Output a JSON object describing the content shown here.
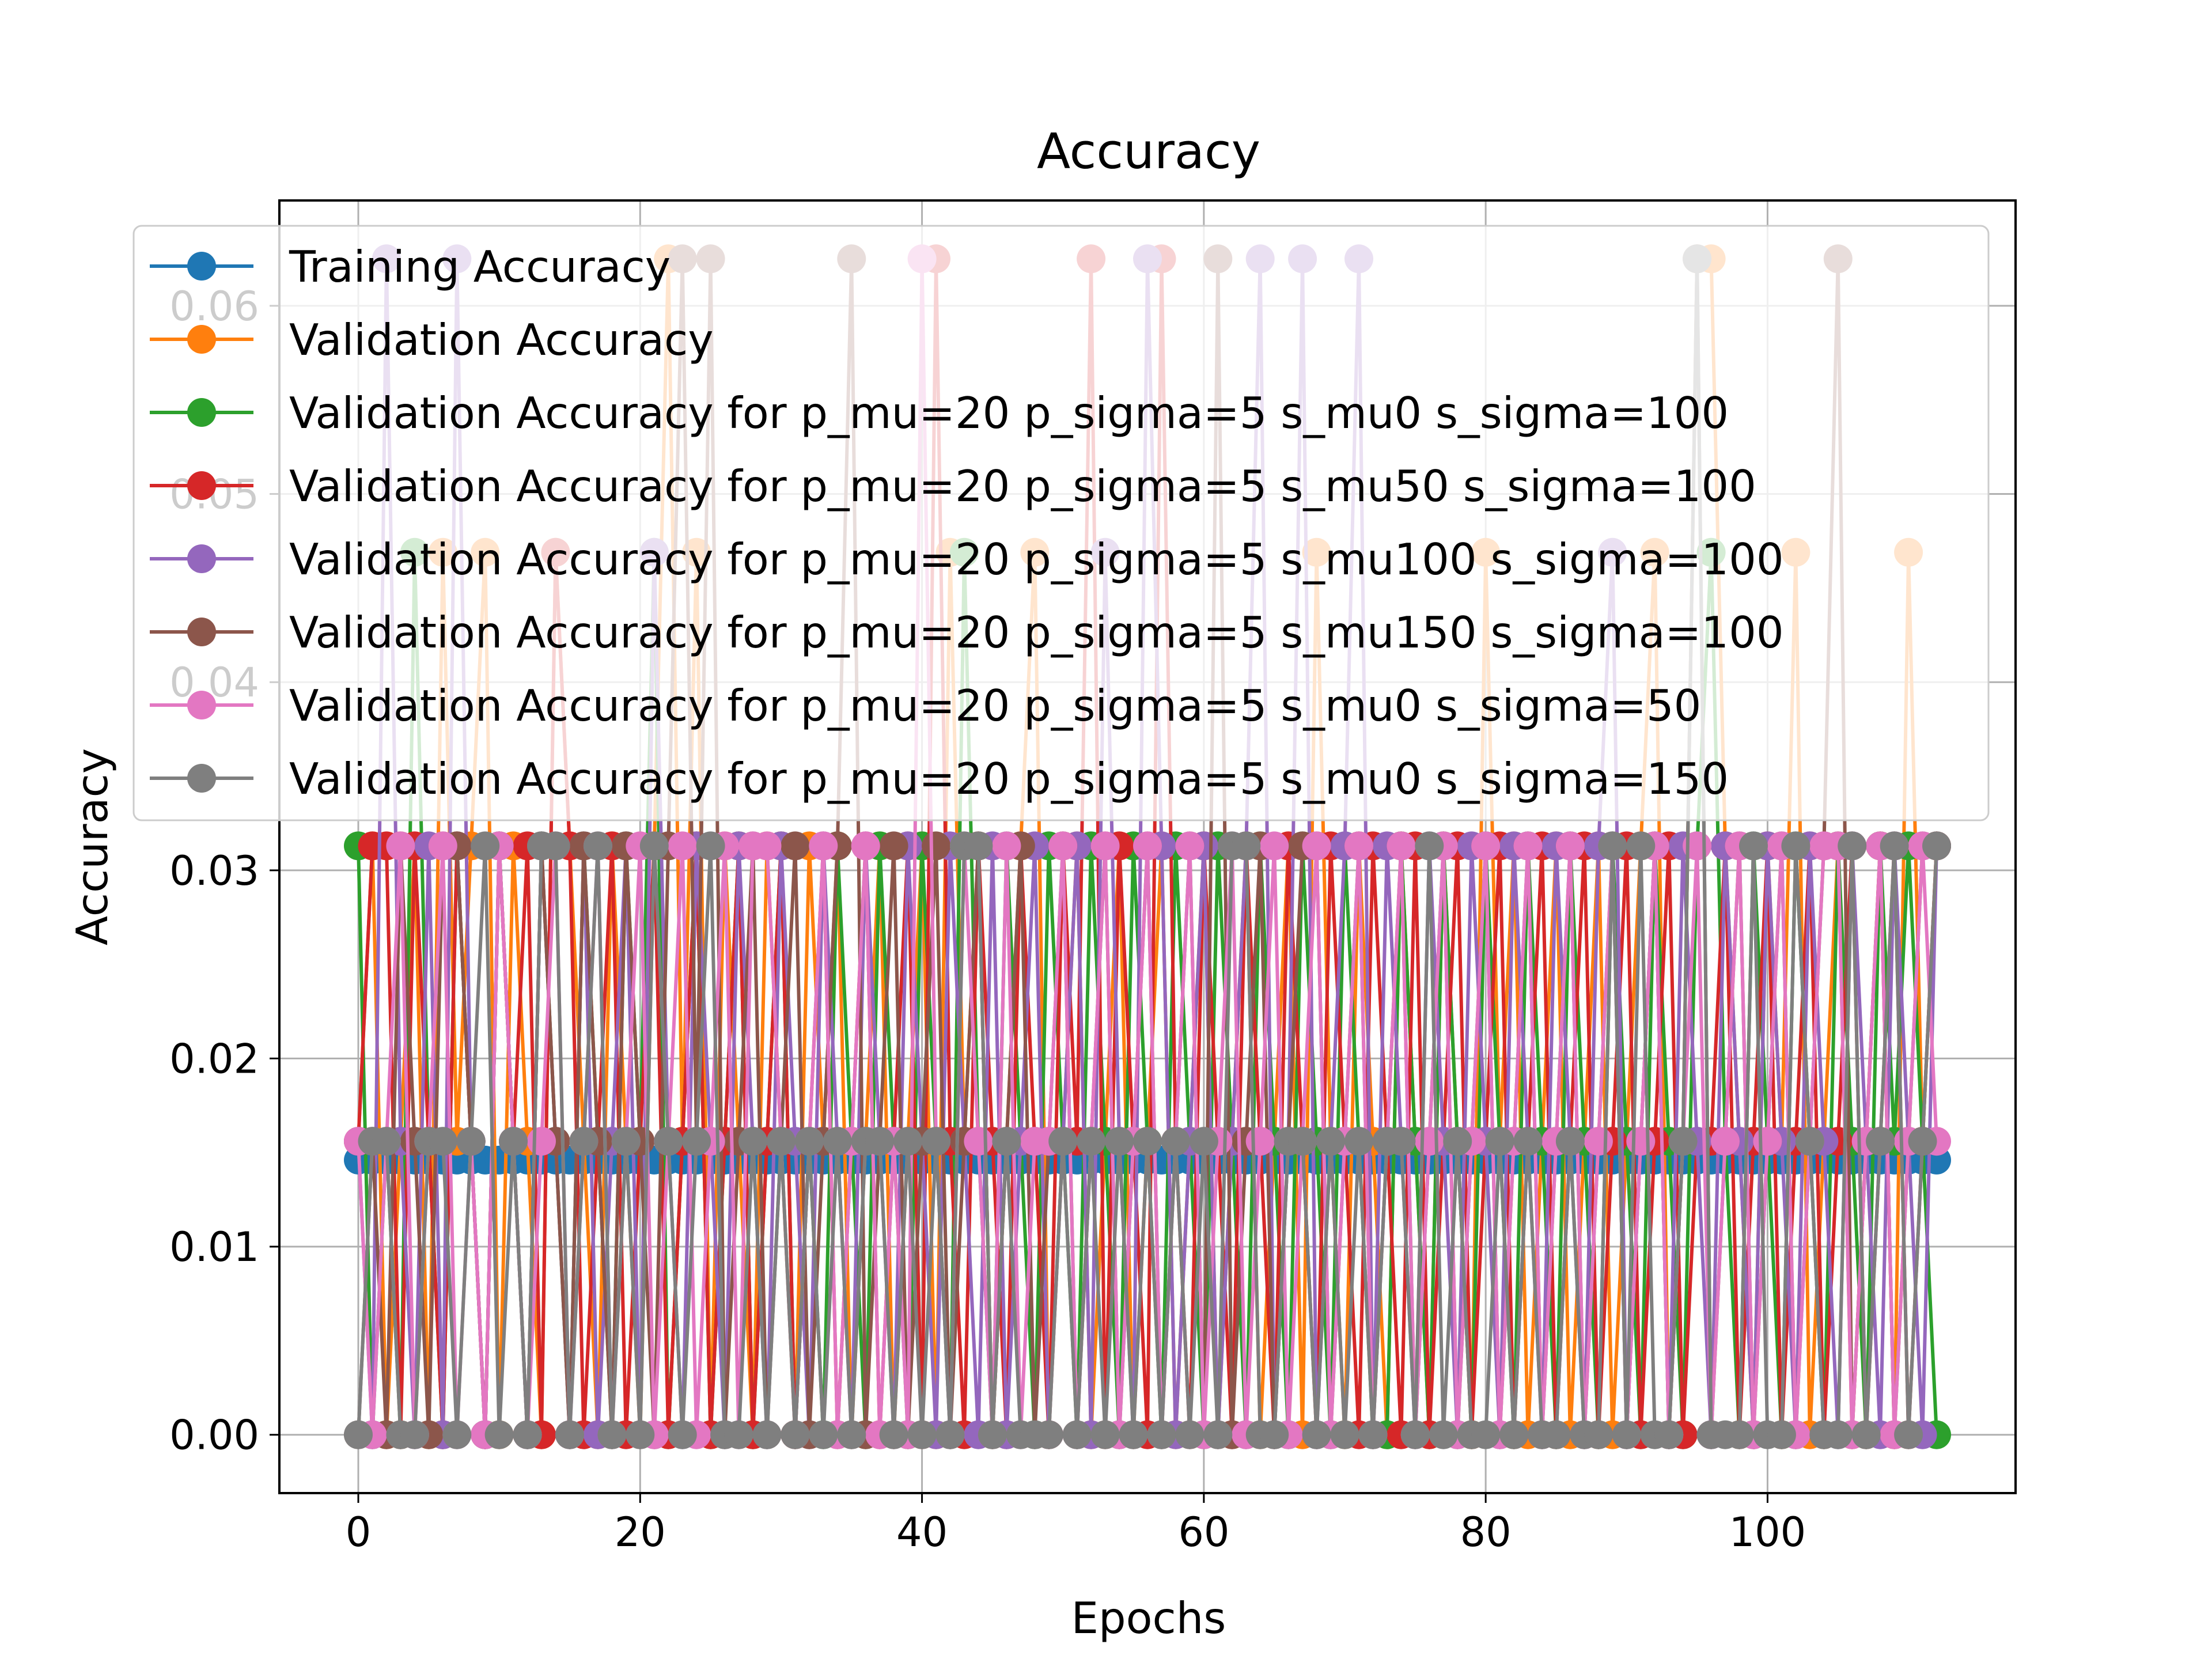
{
  "chart_data": {
    "type": "line",
    "title": "Accuracy",
    "xlabel": "Epochs",
    "ylabel": "Accuracy",
    "xlim": [
      -5.6,
      117.6
    ],
    "ylim": [
      -0.0031,
      0.0656
    ],
    "xticks": [
      0,
      20,
      40,
      60,
      80,
      100
    ],
    "xtick_labels": [
      "0",
      "20",
      "40",
      "60",
      "80",
      "100"
    ],
    "yticks": [
      0.0,
      0.01,
      0.02,
      0.03,
      0.04,
      0.05,
      0.06
    ],
    "ytick_labels": [
      "0.00",
      "0.01",
      "0.02",
      "0.03",
      "0.04",
      "0.05",
      "0.06"
    ],
    "grid": true,
    "legend_position": "upper-left",
    "x": [
      0,
      1,
      2,
      3,
      4,
      5,
      6,
      7,
      8,
      9,
      10,
      11,
      12,
      13,
      14,
      15,
      16,
      17,
      18,
      19,
      20,
      21,
      22,
      23,
      24,
      25,
      26,
      27,
      28,
      29,
      30,
      31,
      32,
      33,
      34,
      35,
      36,
      37,
      38,
      39,
      40,
      41,
      42,
      43,
      44,
      45,
      46,
      47,
      48,
      49,
      50,
      51,
      52,
      53,
      54,
      55,
      56,
      57,
      58,
      59,
      60,
      61,
      62,
      63,
      64,
      65,
      66,
      67,
      68,
      69,
      70,
      71,
      72,
      73,
      74,
      75,
      76,
      77,
      78,
      79,
      80,
      81,
      82,
      83,
      84,
      85,
      86,
      87,
      88,
      89,
      90,
      91,
      92,
      93,
      94,
      95,
      96,
      97,
      98,
      99,
      100,
      101,
      102,
      103,
      104,
      105,
      106,
      107,
      108,
      109,
      110,
      111,
      112
    ],
    "series": [
      {
        "name": "Training Accuracy",
        "color": "#1f77b4",
        "values": [
          0.0146,
          0.0146,
          0.0146,
          0.0146,
          0.0146,
          0.0146,
          0.0146,
          0.0146,
          0.0146,
          0.0146,
          0.0146,
          0.0146,
          0.0146,
          0.0146,
          0.0146,
          0.0146,
          0.0146,
          0.0146,
          0.0146,
          0.0146,
          0.0146,
          0.0146,
          0.0146,
          0.0146,
          0.0146,
          0.0146,
          0.0146,
          0.0146,
          0.0146,
          0.0146,
          0.0146,
          0.0146,
          0.0146,
          0.0146,
          0.0146,
          0.0146,
          0.0146,
          0.0146,
          0.0146,
          0.0146,
          0.0146,
          0.0146,
          0.0146,
          0.0146,
          0.0146,
          0.0146,
          0.0146,
          0.0146,
          0.0146,
          0.0146,
          0.0146,
          0.0146,
          0.0146,
          0.0146,
          0.0146,
          0.0146,
          0.0146,
          0.0146,
          0.0146,
          0.0146,
          0.0146,
          0.0146,
          0.0146,
          0.0146,
          0.0146,
          0.0146,
          0.0146,
          0.0146,
          0.0146,
          0.0146,
          0.0146,
          0.0146,
          0.0146,
          0.0146,
          0.0146,
          0.0146,
          0.0146,
          0.0146,
          0.0146,
          0.0146,
          0.0146,
          0.0146,
          0.0146,
          0.0146,
          0.0146,
          0.0146,
          0.0146,
          0.0146,
          0.0146,
          0.0146,
          0.0146,
          0.0146,
          0.0146,
          0.0146,
          0.0146,
          0.0146,
          0.0146,
          0.0146,
          0.0146,
          0.0146,
          0.0146,
          0.0146,
          0.0146,
          0.0146,
          0.0146,
          0.0146,
          0.0146,
          0.0146,
          0.0146,
          0.0146,
          0.0146,
          0.0146,
          0.0146
        ]
      },
      {
        "name": "Validation Accuracy",
        "color": "#ff7f0e",
        "values": [
          0.0156,
          0.0313,
          0.0,
          0.0156,
          0.0313,
          0.0,
          0.0469,
          0.0156,
          0.0313,
          0.0469,
          0.0,
          0.0313,
          0.0156,
          0.0,
          0.0469,
          0.0313,
          0.0156,
          0.0,
          0.0313,
          0.0156,
          0.0,
          0.0313,
          0.0625,
          0.0156,
          0.0469,
          0.0,
          0.0313,
          0.0156,
          0.0,
          0.0313,
          0.0156,
          0.0,
          0.0313,
          0.0156,
          0.0313,
          0.0,
          0.0156,
          0.0313,
          0.0,
          0.0156,
          0.0313,
          0.0,
          0.0469,
          0.0156,
          0.0313,
          0.0,
          0.0156,
          0.0313,
          0.0469,
          0.0,
          0.0156,
          0.0313,
          0.0,
          0.0156,
          0.0313,
          0.0,
          0.0156,
          0.0313,
          0.0,
          0.0156,
          0.0313,
          0.0,
          0.0156,
          0.0313,
          0.0,
          0.0156,
          0.0313,
          0.0,
          0.0469,
          0.0156,
          0.0,
          0.0313,
          0.0156,
          0.0,
          0.0313,
          0.0156,
          0.0,
          0.0313,
          0.0156,
          0.0,
          0.0469,
          0.0156,
          0.0313,
          0.0,
          0.0156,
          0.0313,
          0.0,
          0.0156,
          0.0313,
          0.0,
          0.0156,
          0.0313,
          0.0469,
          0.0,
          0.0156,
          0.0625,
          0.0625,
          0.0313,
          0.0156,
          0.0,
          0.0313,
          0.0156,
          0.0469,
          0.0,
          0.0156,
          0.0313,
          0.0,
          0.0156,
          0.0313,
          0.0,
          0.0469,
          0.0156,
          0.0313
        ]
      },
      {
        "name": "Validation Accuracy for p_mu=20 p_sigma=5 s_mu0 s_sigma=100",
        "color": "#2ca02c",
        "values": [
          0.0313,
          0.0,
          0.0156,
          0.0,
          0.0469,
          0.0156,
          0.0,
          0.0313,
          0.0156,
          0.0,
          0.0313,
          0.0156,
          0.0,
          0.0313,
          0.0156,
          0.0,
          0.0313,
          0.0156,
          0.0,
          0.0313,
          0.0156,
          0.0469,
          0.0,
          0.0156,
          0.0313,
          0.0,
          0.0156,
          0.0313,
          0.0,
          0.0156,
          0.0313,
          0.0,
          0.0156,
          0.0,
          0.0313,
          0.0156,
          0.0,
          0.0313,
          0.0156,
          0.0,
          0.0313,
          0.0156,
          0.0,
          0.0469,
          0.0156,
          0.0,
          0.0313,
          0.0156,
          0.0,
          0.0313,
          0.0156,
          0.0,
          0.0313,
          0.0156,
          0.0,
          0.0313,
          0.0156,
          0.0,
          0.0313,
          0.0156,
          0.0,
          0.0313,
          0.0156,
          0.0,
          0.0313,
          0.0156,
          0.0,
          0.0313,
          0.0156,
          0.0,
          0.0313,
          0.0156,
          0.0,
          0.0,
          0.0313,
          0.0156,
          0.0,
          0.0313,
          0.0156,
          0.0,
          0.0313,
          0.0156,
          0.0,
          0.0313,
          0.0156,
          0.0,
          0.0313,
          0.0156,
          0.0,
          0.0313,
          0.0156,
          0.0,
          0.0313,
          0.0156,
          0.0,
          0.0313,
          0.0469,
          0.0156,
          0.0,
          0.0313,
          0.0156,
          0.0,
          0.0313,
          0.0156,
          0.0,
          0.0313,
          0.0156,
          0.0,
          0.0313,
          0.0156,
          0.0313,
          0.0156,
          0.0
        ]
      },
      {
        "name": "Validation Accuracy for p_mu=20 p_sigma=5 s_mu50 s_sigma=100",
        "color": "#d62728",
        "values": [
          0.0156,
          0.0313,
          0.0313,
          0.0,
          0.0313,
          0.0156,
          0.0,
          0.0313,
          0.0156,
          0.0,
          0.0313,
          0.0156,
          0.0313,
          0.0,
          0.0469,
          0.0313,
          0.0,
          0.0156,
          0.0313,
          0.0,
          0.0156,
          0.0313,
          0.0,
          0.0156,
          0.0313,
          0.0,
          0.0156,
          0.0313,
          0.0,
          0.0156,
          0.0313,
          0.0,
          0.0156,
          0.0313,
          0.0,
          0.0156,
          0.0313,
          0.0,
          0.0156,
          0.0313,
          0.0,
          0.0625,
          0.0156,
          0.0,
          0.0313,
          0.0156,
          0.0,
          0.0313,
          0.0156,
          0.0,
          0.0313,
          0.0156,
          0.0625,
          0.0,
          0.0313,
          0.0156,
          0.0,
          0.0625,
          0.0156,
          0.0,
          0.0313,
          0.0156,
          0.0,
          0.0313,
          0.0156,
          0.0,
          0.0313,
          0.0156,
          0.0,
          0.0313,
          0.0156,
          0.0,
          0.0313,
          0.0156,
          0.0,
          0.0313,
          0.0,
          0.0156,
          0.0313,
          0.0,
          0.0156,
          0.0313,
          0.0,
          0.0156,
          0.0313,
          0.0,
          0.0156,
          0.0313,
          0.0,
          0.0156,
          0.0313,
          0.0,
          0.0156,
          0.0313,
          0.0,
          0.0156,
          0.0156,
          0.0313,
          0.0,
          0.0156,
          0.0313,
          0.0,
          0.0156,
          0.0313,
          0.0,
          0.0156,
          0.0313,
          0.0,
          0.0156,
          0.0313,
          0.0,
          0.0156,
          0.0313
        ]
      },
      {
        "name": "Validation Accuracy for p_mu=20 p_sigma=5 s_mu100 s_sigma=100",
        "color": "#9467bd",
        "values": [
          0.0156,
          0.0,
          0.0625,
          0.0156,
          0.0,
          0.0313,
          0.0,
          0.0625,
          0.0156,
          0.0,
          0.0313,
          0.0156,
          0.0,
          0.0313,
          0.0156,
          0.0,
          0.0313,
          0.0,
          0.0156,
          0.0313,
          0.0,
          0.0469,
          0.0156,
          0.0,
          0.0313,
          0.0156,
          0.0,
          0.0313,
          0.0156,
          0.0,
          0.0313,
          0.0156,
          0.0,
          0.0313,
          0.0156,
          0.0,
          0.0313,
          0.0156,
          0.0,
          0.0313,
          0.0156,
          0.0,
          0.0313,
          0.0156,
          0.0,
          0.0313,
          0.0,
          0.0156,
          0.0313,
          0.0,
          0.0156,
          0.0313,
          0.0,
          0.0469,
          0.0156,
          0.0,
          0.0625,
          0.0313,
          0.0,
          0.0156,
          0.0313,
          0.0,
          0.0156,
          0.0313,
          0.0625,
          0.0,
          0.0156,
          0.0625,
          0.0,
          0.0156,
          0.0313,
          0.0625,
          0.0,
          0.0313,
          0.0156,
          0.0,
          0.0313,
          0.0156,
          0.0,
          0.0313,
          0.0156,
          0.0,
          0.0313,
          0.0156,
          0.0,
          0.0313,
          0.0156,
          0.0,
          0.0313,
          0.0469,
          0.0,
          0.0156,
          0.0313,
          0.0,
          0.0313,
          0.0156,
          0.0,
          0.0313,
          0.0156,
          0.0,
          0.0313,
          0.0156,
          0.0,
          0.0313,
          0.0156,
          0.0,
          0.0313,
          0.0156,
          0.0,
          0.0313,
          0.0156,
          0.0,
          0.0313
        ]
      },
      {
        "name": "Validation Accuracy for p_mu=20 p_sigma=5 s_mu150 s_sigma=100",
        "color": "#8c564b",
        "values": [
          0.0,
          0.0156,
          0.0,
          0.0313,
          0.0156,
          0.0,
          0.0313,
          0.0313,
          0.0156,
          0.0,
          0.0313,
          0.0156,
          0.0,
          0.0313,
          0.0156,
          0.0,
          0.0313,
          0.0156,
          0.0,
          0.0313,
          0.0156,
          0.0,
          0.0313,
          0.0625,
          0.0156,
          0.0625,
          0.0,
          0.0156,
          0.0313,
          0.0,
          0.0156,
          0.0313,
          0.0,
          0.0156,
          0.0313,
          0.0625,
          0.0,
          0.0156,
          0.0313,
          0.0,
          0.0156,
          0.0313,
          0.0,
          0.0156,
          0.0313,
          0.0,
          0.0156,
          0.0313,
          0.0,
          0.0156,
          0.0313,
          0.0,
          0.0156,
          0.0313,
          0.0,
          0.0156,
          0.0313,
          0.0,
          0.0156,
          0.0313,
          0.0,
          0.0625,
          0.0,
          0.0156,
          0.0313,
          0.0,
          0.0156,
          0.0313,
          0.0313,
          0.0,
          0.0156,
          0.0313,
          0.0,
          0.0156,
          0.0313,
          0.0,
          0.0156,
          0.0313,
          0.0,
          0.0156,
          0.0313,
          0.0,
          0.0156,
          0.0313,
          0.0,
          0.0156,
          0.0313,
          0.0,
          0.0156,
          0.0313,
          0.0,
          0.0156,
          0.0313,
          0.0,
          0.0156,
          0.0625,
          0.0,
          0.0156,
          0.0313,
          0.0,
          0.0156,
          0.0313,
          0.0,
          0.0156,
          0.0313,
          0.0625,
          0.0,
          0.0156,
          0.0313,
          0.0,
          0.0156,
          0.0313,
          0.0313
        ]
      },
      {
        "name": "Validation Accuracy for p_mu=20 p_sigma=5 s_mu0 s_sigma=50",
        "color": "#e377c2",
        "values": [
          0.0156,
          0.0,
          0.0156,
          0.0313,
          0.0,
          0.0156,
          0.0313,
          0.0,
          0.0156,
          0.0,
          0.0313,
          0.0156,
          0.0,
          0.0156,
          0.0313,
          0.0,
          0.0156,
          0.0313,
          0.0,
          0.0156,
          0.0313,
          0.0,
          0.0156,
          0.0313,
          0.0,
          0.0156,
          0.0313,
          0.0,
          0.0313,
          0.0313,
          0.0156,
          0.0,
          0.0156,
          0.0313,
          0.0,
          0.0156,
          0.0313,
          0.0,
          0.0156,
          0.0,
          0.0625,
          0.0156,
          0.0,
          0.0313,
          0.0156,
          0.0,
          0.0313,
          0.0,
          0.0156,
          0.0156,
          0.0313,
          0.0,
          0.0156,
          0.0313,
          0.0,
          0.0156,
          0.0313,
          0.0,
          0.0156,
          0.0313,
          0.0,
          0.0156,
          0.0313,
          0.0,
          0.0156,
          0.0313,
          0.0,
          0.0156,
          0.0313,
          0.0,
          0.0156,
          0.0313,
          0.0,
          0.0156,
          0.0313,
          0.0,
          0.0156,
          0.0313,
          0.0,
          0.0156,
          0.0313,
          0.0,
          0.0156,
          0.0313,
          0.0,
          0.0156,
          0.0313,
          0.0,
          0.0156,
          0.0313,
          0.0,
          0.0156,
          0.0313,
          0.0,
          0.0156,
          0.0313,
          0.0,
          0.0156,
          0.0313,
          0.0,
          0.0156,
          0.0313,
          0.0,
          0.0156,
          0.0313,
          0.0313,
          0.0,
          0.0156,
          0.0313,
          0.0,
          0.0156,
          0.0313,
          0.0156
        ]
      },
      {
        "name": "Validation Accuracy for p_mu=20 p_sigma=5 s_mu0 s_sigma=150",
        "color": "#7f7f7f",
        "values": [
          0.0,
          0.0156,
          0.0156,
          0.0,
          0.0,
          0.0156,
          0.0156,
          0.0,
          0.0156,
          0.0313,
          0.0,
          0.0156,
          0.0,
          0.0313,
          0.0313,
          0.0,
          0.0156,
          0.0313,
          0.0,
          0.0156,
          0.0,
          0.0313,
          0.0156,
          0.0,
          0.0156,
          0.0313,
          0.0,
          0.0,
          0.0156,
          0.0,
          0.0156,
          0.0,
          0.0156,
          0.0,
          0.0156,
          0.0,
          0.0156,
          0.0156,
          0.0,
          0.0156,
          0.0,
          0.0156,
          0.0,
          0.0313,
          0.0313,
          0.0,
          0.0156,
          0.0,
          0.0,
          0.0,
          0.0156,
          0.0,
          0.0156,
          0.0,
          0.0156,
          0.0,
          0.0156,
          0.0,
          0.0156,
          0.0,
          0.0156,
          0.0,
          0.0313,
          0.0313,
          0.0,
          0.0,
          0.0156,
          0.0156,
          0.0,
          0.0156,
          0.0,
          0.0156,
          0.0,
          0.0156,
          0.0156,
          0.0,
          0.0313,
          0.0,
          0.0156,
          0.0,
          0.0,
          0.0156,
          0.0,
          0.0156,
          0.0,
          0.0,
          0.0156,
          0.0,
          0.0,
          0.0313,
          0.0,
          0.0313,
          0.0,
          0.0,
          0.0156,
          0.0625,
          0.0,
          0.0,
          0.0,
          0.0313,
          0.0,
          0.0,
          0.0313,
          0.0156,
          0.0,
          0.0,
          0.0313,
          0.0,
          0.0156,
          0.0313,
          0.0,
          0.0156,
          0.0313
        ]
      }
    ]
  }
}
